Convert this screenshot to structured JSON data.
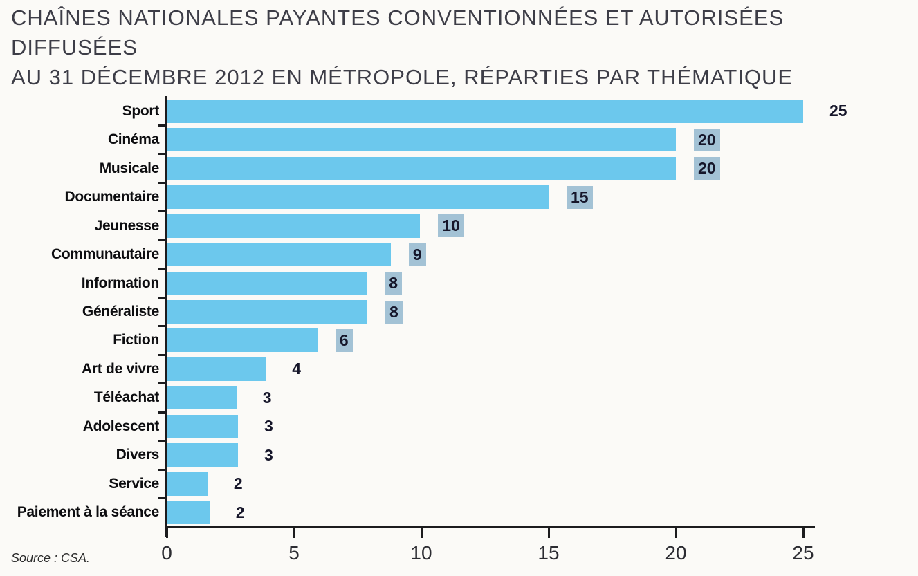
{
  "title_lines": [
    "CHAÎNES NATIONALES PAYANTES CONVENTIONNÉES ET AUTORISÉES DIFFUSÉES",
    "AU 31 DÉCEMBRE 2012 EN MÉTROPOLE, RÉPARTIES PAR THÉMATIQUE"
  ],
  "source": "Source : CSA.",
  "colors": {
    "bar": "#6cc8ed",
    "value_label_box": "#a3c2d5",
    "value_text": "#16162a",
    "axis": "#1c1c1e",
    "background": "#fbfaf7"
  },
  "chart_data": {
    "type": "bar",
    "orientation": "horizontal",
    "title": "CHAÎNES NATIONALES PAYANTES CONVENTIONNÉES ET AUTORISÉES DIFFUSÉES AU 31 DÉCEMBRE 2012 EN MÉTROPOLE, RÉPARTIES PAR THÉMATIQUE",
    "categories": [
      "Sport",
      "Cinéma",
      "Musicale",
      "Documentaire",
      "Jeunesse",
      "Communautaire",
      "Information",
      "Généraliste",
      "Fiction",
      "Art de vivre",
      "Téléachat",
      "Adolescent",
      "Divers",
      "Service",
      "Paiement à la séance"
    ],
    "values": [
      25,
      20,
      20,
      15,
      10,
      9,
      8,
      8,
      6,
      4,
      3,
      3,
      3,
      2,
      2
    ],
    "bar_display_units": [
      25,
      20,
      20,
      15,
      9.95,
      8.8,
      7.86,
      7.88,
      5.92,
      3.89,
      2.74,
      2.8,
      2.8,
      1.6,
      1.68
    ],
    "value_label_boxed": [
      false,
      true,
      true,
      true,
      true,
      true,
      true,
      true,
      true,
      false,
      false,
      false,
      false,
      false,
      false
    ],
    "x_ticks": [
      0,
      5,
      10,
      15,
      20,
      25
    ],
    "xlim": [
      0,
      25.5
    ],
    "grid": false,
    "legend": null,
    "xlabel": "",
    "ylabel": ""
  }
}
